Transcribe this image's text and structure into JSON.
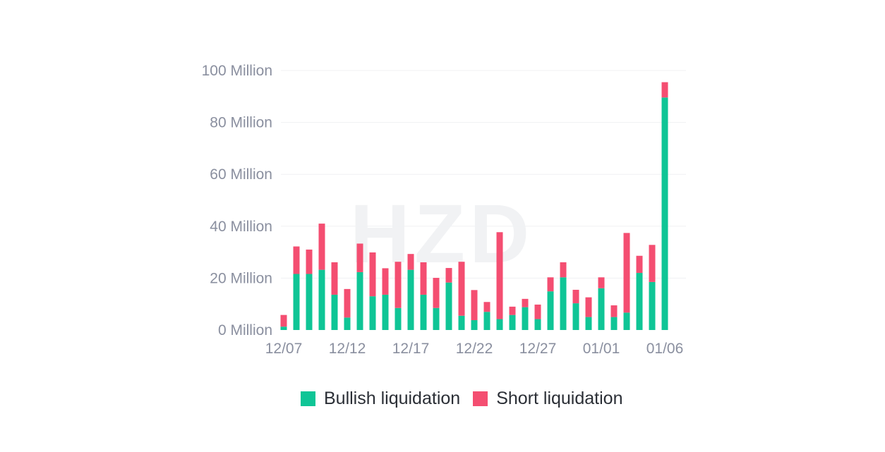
{
  "chart_data": {
    "type": "bar",
    "stacked": true,
    "watermark": "HZD",
    "x": [
      "12/07",
      "12/08",
      "12/09",
      "12/10",
      "12/11",
      "12/12",
      "12/13",
      "12/14",
      "12/15",
      "12/16",
      "12/17",
      "12/18",
      "12/19",
      "12/20",
      "12/21",
      "12/22",
      "12/23",
      "12/24",
      "12/25",
      "12/26",
      "12/27",
      "12/28",
      "12/29",
      "12/30",
      "12/31",
      "01/01",
      "01/02",
      "01/03",
      "01/04",
      "01/05",
      "01/06"
    ],
    "x_tick_labels": [
      "12/07",
      "12/12",
      "12/17",
      "12/22",
      "12/27",
      "01/01",
      "01/06"
    ],
    "ylim": [
      0,
      100
    ],
    "y_tick_labels": [
      "0 Million",
      "20 Million",
      "40 Million",
      "60 Million",
      "80 Million",
      "100 Million"
    ],
    "grid": true,
    "legend_position": "bottom-center",
    "series": [
      {
        "name": "Bullish liquidation",
        "color": "#0fc596",
        "values": [
          1.3,
          21.6,
          21.6,
          23.2,
          13.6,
          4.8,
          22.3,
          13.0,
          13.6,
          8.5,
          23.2,
          13.6,
          8.5,
          18.3,
          5.5,
          3.8,
          7.0,
          4.2,
          5.8,
          8.8,
          4.2,
          14.9,
          20.3,
          10.3,
          5.0,
          16.1,
          5.0,
          6.7,
          22.0,
          18.5,
          89.6
        ]
      },
      {
        "name": "Short liquidation",
        "color": "#f44e71",
        "values": [
          4.5,
          10.6,
          9.4,
          17.8,
          12.5,
          11.0,
          11.0,
          16.9,
          10.2,
          17.8,
          6.1,
          12.5,
          11.6,
          5.6,
          20.8,
          11.6,
          3.8,
          33.5,
          3.2,
          3.2,
          5.6,
          5.4,
          5.8,
          5.2,
          7.6,
          4.2,
          4.5,
          30.7,
          6.6,
          14.3,
          5.9
        ]
      }
    ]
  }
}
